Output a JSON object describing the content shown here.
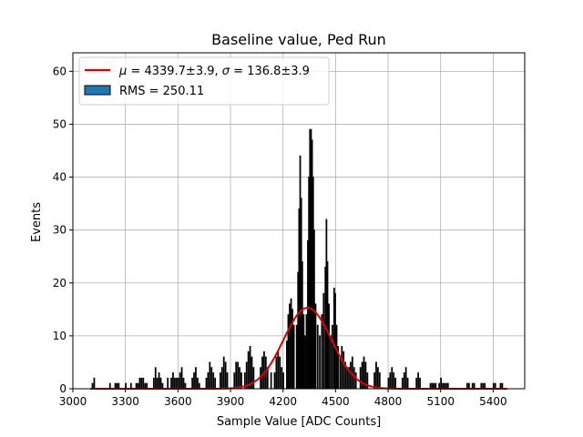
{
  "chart_data": {
    "type": "bar",
    "title": "Baseline value, Ped Run",
    "xlabel": "Sample Value [ADC Counts]",
    "ylabel": "Events",
    "xlim": [
      3000,
      5580
    ],
    "ylim": [
      0,
      63.5
    ],
    "xticks": [
      "3000",
      "3300",
      "3600",
      "3900",
      "4200",
      "4500",
      "4800",
      "5100",
      "5400"
    ],
    "yticks": [
      "0",
      "10",
      "20",
      "30",
      "40",
      "50",
      "60"
    ],
    "grid": true,
    "legend_position": "top-left",
    "bin_width": 4,
    "histogram": {
      "name": "RMS = 250.11",
      "color": "#1f77b4",
      "edgecolor": "#000000",
      "bins": [
        [
          3110,
          1
        ],
        [
          3120,
          2
        ],
        [
          3210,
          1
        ],
        [
          3240,
          1
        ],
        [
          3250,
          1
        ],
        [
          3260,
          1
        ],
        [
          3300,
          1
        ],
        [
          3330,
          1
        ],
        [
          3360,
          1
        ],
        [
          3370,
          1
        ],
        [
          3380,
          2
        ],
        [
          3390,
          2
        ],
        [
          3400,
          2
        ],
        [
          3410,
          1
        ],
        [
          3420,
          1
        ],
        [
          3460,
          2
        ],
        [
          3470,
          4
        ],
        [
          3480,
          2
        ],
        [
          3490,
          3
        ],
        [
          3500,
          2
        ],
        [
          3510,
          1
        ],
        [
          3540,
          2
        ],
        [
          3560,
          2
        ],
        [
          3570,
          3
        ],
        [
          3580,
          2
        ],
        [
          3590,
          2
        ],
        [
          3600,
          2
        ],
        [
          3610,
          3
        ],
        [
          3620,
          4
        ],
        [
          3630,
          2
        ],
        [
          3640,
          1
        ],
        [
          3680,
          2
        ],
        [
          3690,
          3
        ],
        [
          3700,
          4
        ],
        [
          3710,
          2
        ],
        [
          3720,
          1
        ],
        [
          3760,
          2
        ],
        [
          3770,
          3
        ],
        [
          3780,
          5
        ],
        [
          3790,
          4
        ],
        [
          3800,
          3
        ],
        [
          3810,
          2
        ],
        [
          3840,
          3
        ],
        [
          3850,
          4
        ],
        [
          3860,
          6
        ],
        [
          3870,
          5
        ],
        [
          3880,
          3
        ],
        [
          3920,
          3
        ],
        [
          3930,
          5
        ],
        [
          3940,
          5
        ],
        [
          3950,
          4
        ],
        [
          3960,
          3
        ],
        [
          3980,
          3
        ],
        [
          3990,
          5
        ],
        [
          4000,
          7
        ],
        [
          4010,
          8
        ],
        [
          4020,
          6
        ],
        [
          4030,
          4
        ],
        [
          4070,
          4
        ],
        [
          4080,
          6
        ],
        [
          4090,
          7
        ],
        [
          4100,
          6
        ],
        [
          4110,
          4
        ],
        [
          4130,
          3
        ],
        [
          4150,
          3
        ],
        [
          4160,
          6
        ],
        [
          4170,
          7
        ],
        [
          4180,
          6
        ],
        [
          4190,
          4
        ],
        [
          4200,
          3
        ],
        [
          4220,
          9
        ],
        [
          4228,
          14
        ],
        [
          4236,
          16
        ],
        [
          4244,
          17
        ],
        [
          4252,
          15
        ],
        [
          4260,
          12
        ],
        [
          4276,
          12
        ],
        [
          4284,
          22
        ],
        [
          4290,
          34
        ],
        [
          4296,
          44
        ],
        [
          4302,
          36
        ],
        [
          4308,
          24
        ],
        [
          4316,
          14
        ],
        [
          4324,
          10
        ],
        [
          4332,
          14
        ],
        [
          4340,
          28
        ],
        [
          4346,
          40
        ],
        [
          4352,
          49
        ],
        [
          4358,
          49
        ],
        [
          4364,
          47
        ],
        [
          4370,
          40
        ],
        [
          4376,
          30
        ],
        [
          4384,
          16
        ],
        [
          4396,
          12
        ],
        [
          4408,
          10
        ],
        [
          4420,
          14
        ],
        [
          4430,
          18
        ],
        [
          4440,
          23
        ],
        [
          4446,
          32
        ],
        [
          4452,
          24
        ],
        [
          4460,
          16
        ],
        [
          4470,
          10
        ],
        [
          4480,
          12
        ],
        [
          4490,
          19
        ],
        [
          4496,
          18
        ],
        [
          4504,
          12
        ],
        [
          4512,
          8
        ],
        [
          4524,
          6
        ],
        [
          4534,
          8
        ],
        [
          4544,
          7
        ],
        [
          4554,
          5
        ],
        [
          4564,
          4
        ],
        [
          4574,
          4
        ],
        [
          4584,
          5
        ],
        [
          4594,
          6
        ],
        [
          4604,
          4
        ],
        [
          4614,
          3
        ],
        [
          4640,
          4
        ],
        [
          4650,
          5
        ],
        [
          4660,
          6
        ],
        [
          4670,
          5
        ],
        [
          4680,
          3
        ],
        [
          4720,
          3
        ],
        [
          4730,
          5
        ],
        [
          4740,
          4
        ],
        [
          4750,
          3
        ],
        [
          4800,
          2
        ],
        [
          4810,
          3
        ],
        [
          4820,
          4
        ],
        [
          4830,
          3
        ],
        [
          4840,
          2
        ],
        [
          4880,
          2
        ],
        [
          4890,
          3
        ],
        [
          4900,
          4
        ],
        [
          4910,
          2
        ],
        [
          4960,
          2
        ],
        [
          4970,
          3
        ],
        [
          4980,
          2
        ],
        [
          5040,
          1
        ],
        [
          5050,
          1
        ],
        [
          5060,
          1
        ],
        [
          5070,
          1
        ],
        [
          5090,
          1
        ],
        [
          5100,
          2
        ],
        [
          5110,
          1
        ],
        [
          5120,
          1
        ],
        [
          5130,
          1
        ],
        [
          5140,
          1
        ],
        [
          5250,
          1
        ],
        [
          5260,
          1
        ],
        [
          5280,
          1
        ],
        [
          5290,
          1
        ],
        [
          5330,
          1
        ],
        [
          5340,
          1
        ],
        [
          5350,
          1
        ],
        [
          5400,
          1
        ],
        [
          5410,
          1
        ],
        [
          5440,
          1
        ],
        [
          5450,
          1
        ]
      ]
    },
    "fit": {
      "name": "$\\mu=$4339.7$\\pm$3.9, $\\sigma=$136.8$\\pm$3.9",
      "label_mu_symbol": "μ",
      "label_mu_text": " = 4339.7±3.9, ",
      "label_sigma_symbol": "σ",
      "label_sigma_text": " = 136.8±3.9",
      "color": "#dd0000",
      "mu": 4339.7,
      "sigma": 136.8,
      "amplitude": 15.3,
      "x_range": [
        3100,
        5480
      ]
    }
  }
}
